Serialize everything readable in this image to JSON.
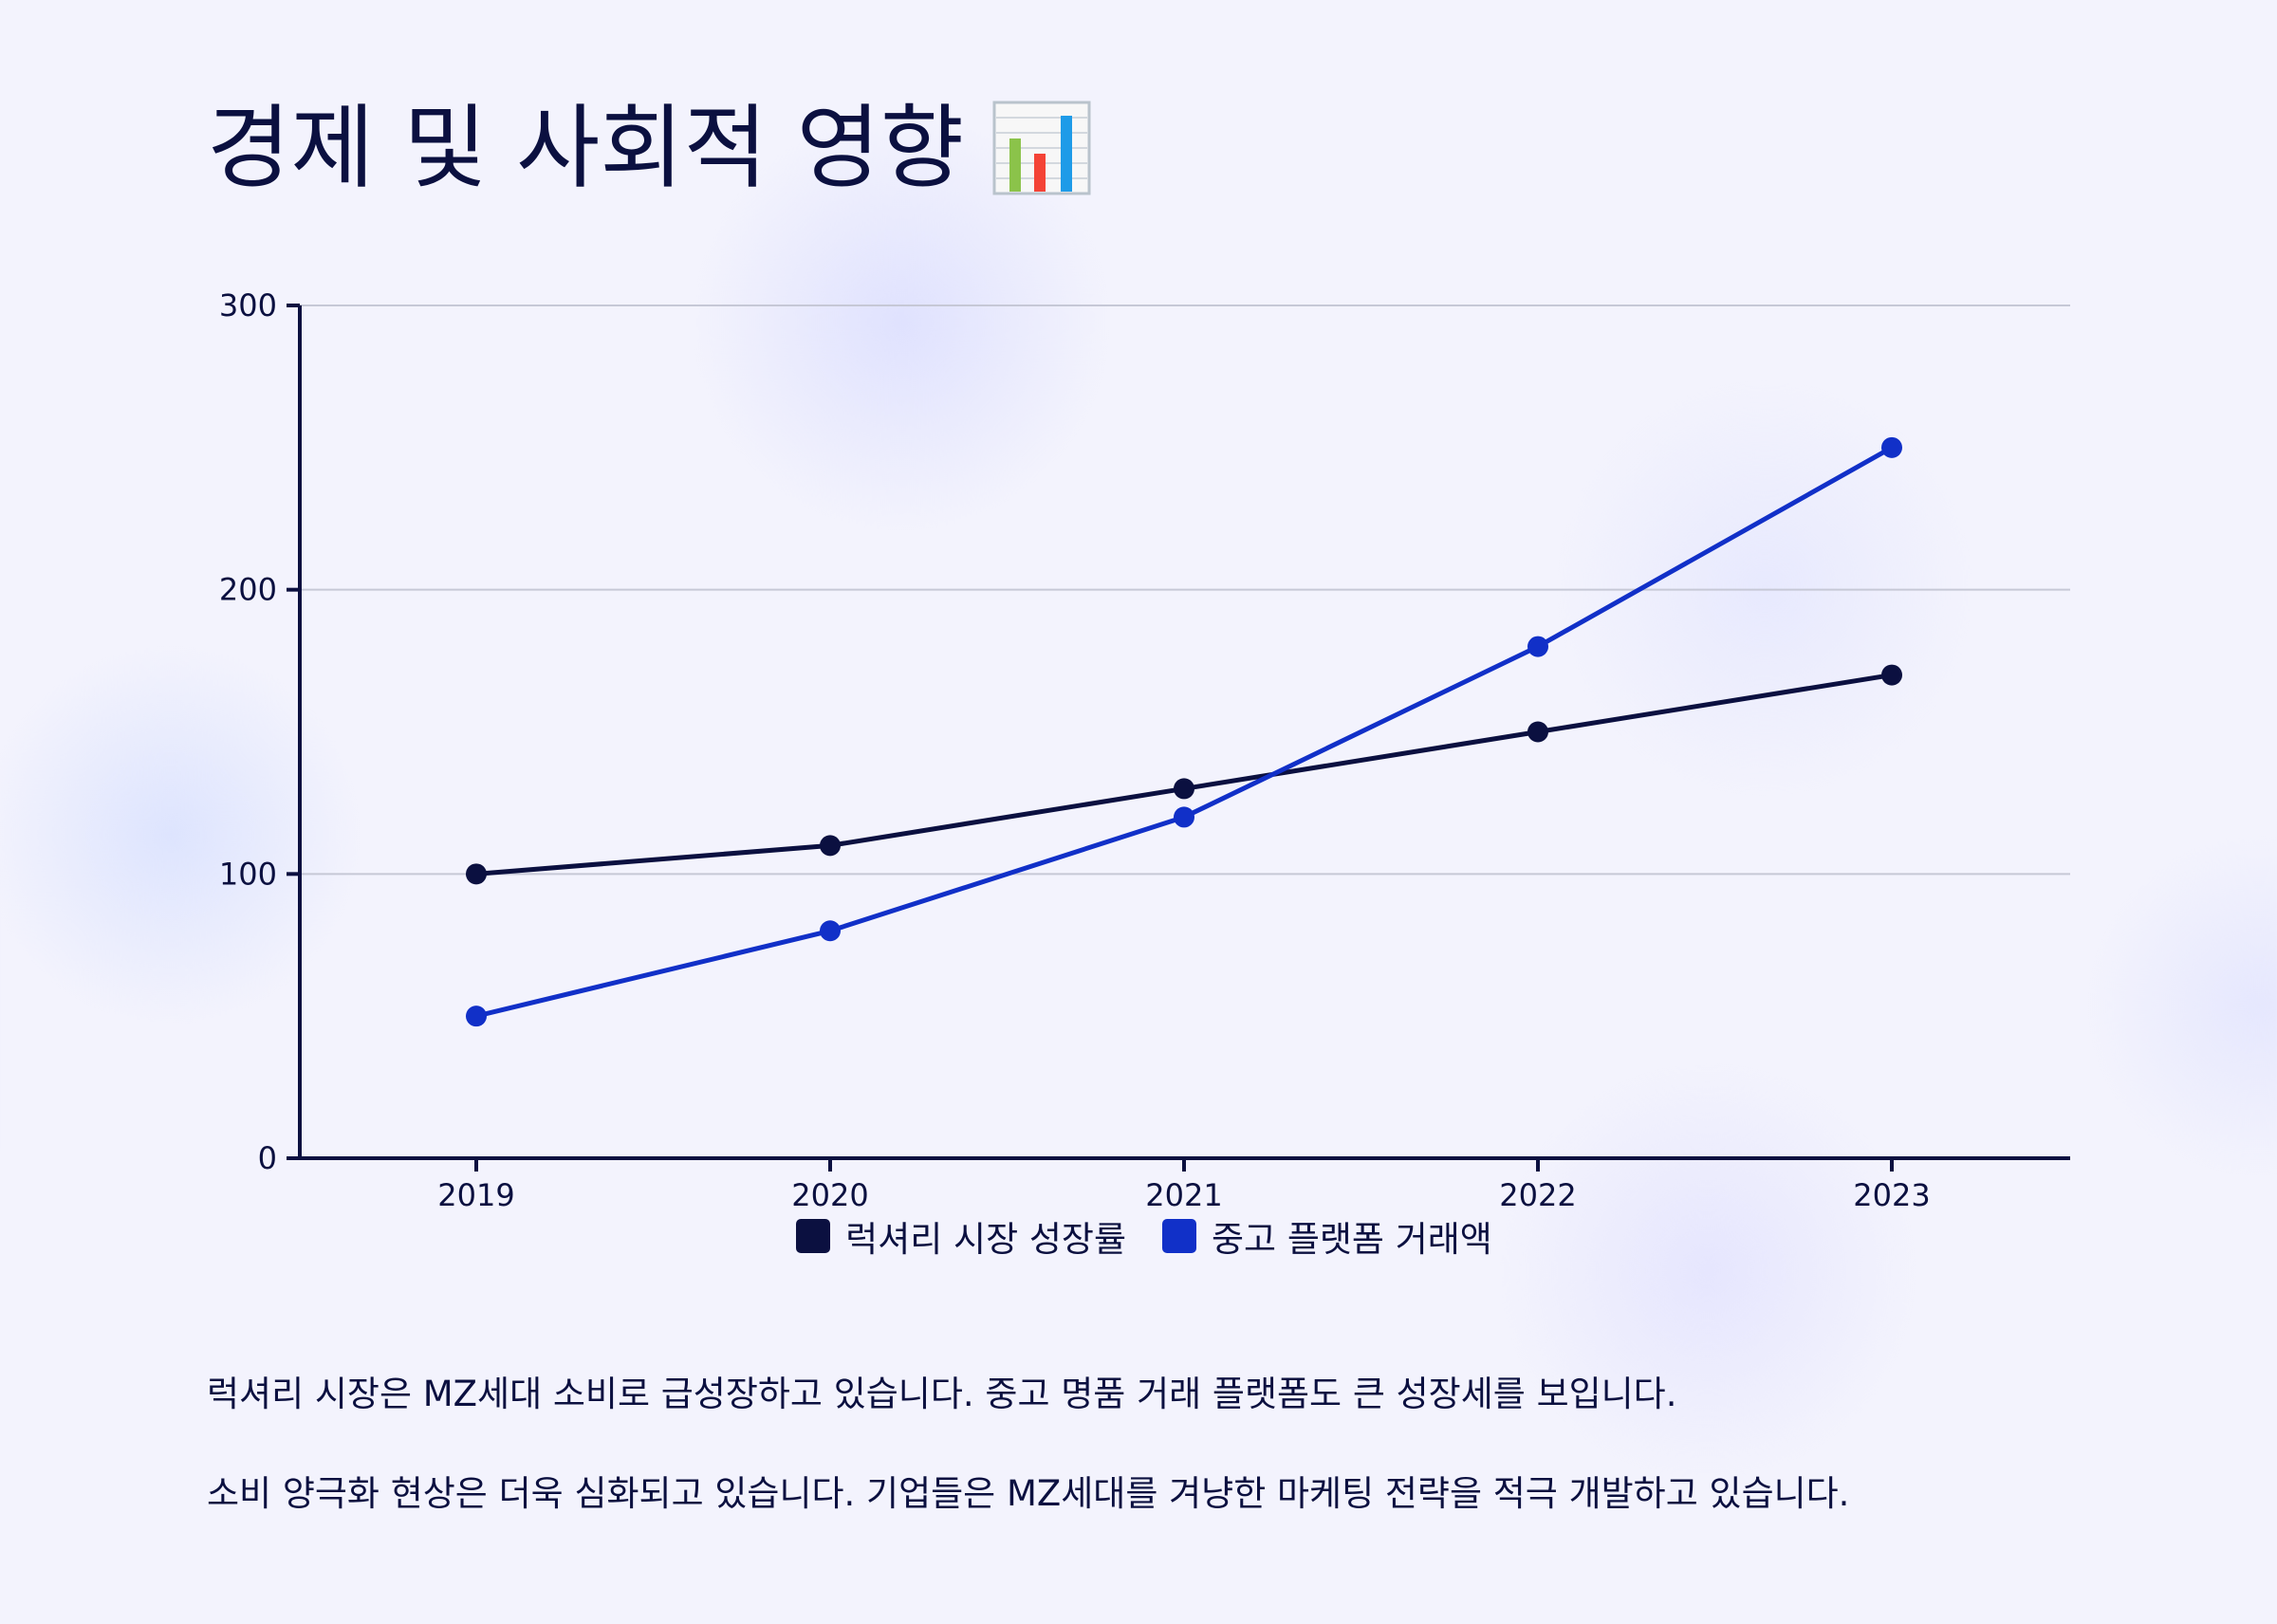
{
  "page": {
    "title": "경제 및 사회적 영향",
    "title_icon": "bar-chart-icon",
    "paragraphs": [
      "럭셔리 시장은 MZ세대 소비로 급성장하고 있습니다. 중고 명품 거래 플랫폼도 큰 성장세를 보입니다.",
      "소비 양극화 현상은 더욱 심화되고 있습니다. 기업들은 MZ세대를 겨냥한 마케팅 전략을 적극 개발하고 있습니다."
    ]
  },
  "chart_data": {
    "type": "line",
    "title": "",
    "xlabel": "",
    "ylabel": "",
    "categories": [
      "2019",
      "2020",
      "2021",
      "2022",
      "2023"
    ],
    "ylim": [
      0,
      300
    ],
    "yticks": [
      "0",
      "100",
      "200",
      "300"
    ],
    "grid": true,
    "legend_position": "bottom",
    "series": [
      {
        "name": "럭셔리 시장 성장률",
        "color": "#0b1040",
        "values": [
          100,
          110,
          130,
          150,
          170
        ]
      },
      {
        "name": "중고 플랫폼 거래액",
        "color": "#1130c8",
        "values": [
          50,
          80,
          120,
          180,
          250
        ]
      }
    ]
  }
}
